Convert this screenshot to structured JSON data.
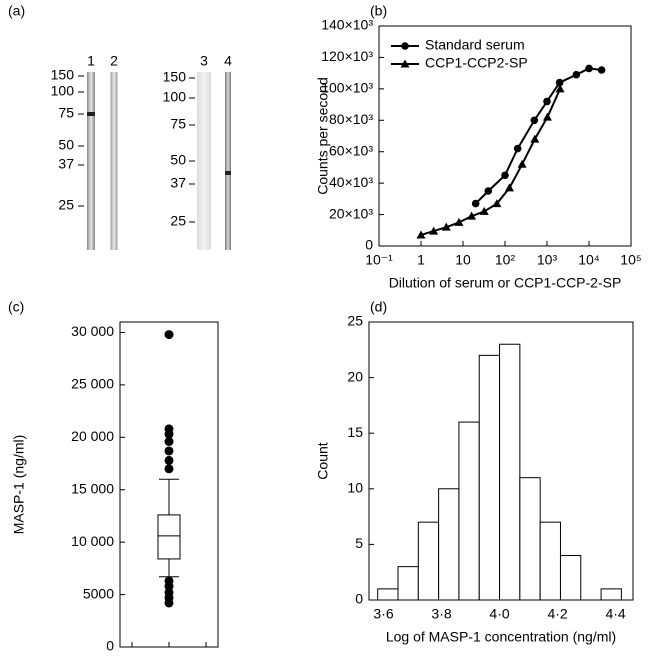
{
  "chart_data": [
    {
      "type": "blot",
      "panel_label": "(a)",
      "lanes": [
        "1",
        "2",
        "3",
        "4"
      ],
      "left_markers": [
        150,
        100,
        75,
        50,
        37,
        25
      ],
      "right_markers": [
        150,
        100,
        75,
        50,
        37,
        25
      ]
    },
    {
      "type": "line",
      "panel_label": "(b)",
      "x_label": "Dilution of serum or CCP1-CCP-2-SP",
      "y_label": "Counts per second",
      "xlog": true,
      "xlim": [
        0.1,
        100000
      ],
      "xticks": [
        {
          "value": 0.1,
          "label": "10⁻¹"
        },
        1,
        10,
        {
          "value": 100,
          "label": "10²"
        },
        {
          "value": 1000,
          "label": "10³"
        },
        {
          "value": 10000,
          "label": "10⁴"
        },
        {
          "value": 100000,
          "label": "10⁵"
        }
      ],
      "ylim": [
        0,
        140000
      ],
      "yticks": [
        0,
        {
          "value": 20000,
          "label": "20×10³"
        },
        {
          "value": 40000,
          "label": "40×10³"
        },
        {
          "value": 60000,
          "label": "60×10³"
        },
        {
          "value": 80000,
          "label": "80×10³"
        },
        {
          "value": 100000,
          "label": "100×10³"
        },
        {
          "value": 120000,
          "label": "120×10³"
        },
        {
          "value": 140000,
          "label": "140×10³"
        }
      ],
      "legend": "upper left",
      "series": [
        {
          "name": "Standard serum",
          "marker": "circle",
          "color": "#000000",
          "x": [
            20,
            40,
            100,
            200,
            500,
            1000,
            2000,
            5000,
            10000,
            20000
          ],
          "values": [
            27000,
            35000,
            45000,
            62000,
            80000,
            92000,
            104000,
            109000,
            113000,
            112000
          ]
        },
        {
          "name": "CCP1-CCP2-SP",
          "marker": "triangle",
          "color": "#000000",
          "x": [
            1,
            2,
            4,
            8,
            16,
            32,
            64,
            128,
            256,
            512,
            1024,
            2048
          ],
          "values": [
            7000,
            9500,
            12000,
            15000,
            19000,
            22000,
            27000,
            37000,
            52000,
            68000,
            82000,
            100000
          ]
        }
      ]
    },
    {
      "type": "box",
      "panel_label": "(c)",
      "y_label": "MASP-1 (ng/ml)",
      "color": "#000000",
      "ylim": [
        0,
        31000
      ],
      "yticks": [
        0,
        5000,
        {
          "value": 10000,
          "label": "10 000"
        },
        {
          "value": 15000,
          "label": "15 000"
        },
        {
          "value": 20000,
          "label": "20 000"
        },
        {
          "value": 25000,
          "label": "25 000"
        },
        {
          "value": 30000,
          "label": "30 000"
        }
      ],
      "stats": {
        "min": 6700,
        "q1": 8400,
        "median": 10600,
        "q3": 12600,
        "max": 16000
      },
      "outliers": [
        17000,
        17800,
        18700,
        19600,
        20300,
        20800,
        29800,
        6300,
        5800,
        5200,
        4700,
        4200
      ]
    },
    {
      "type": "histogram",
      "panel_label": "(d)",
      "x_label": "Log of MASP-1 concentration (ng/ml)",
      "y_label": "Count",
      "bins": [
        3.58,
        3.65,
        3.72,
        3.79,
        3.86,
        3.93,
        4.0,
        4.07,
        4.14,
        4.21,
        4.28,
        4.35,
        4.42
      ],
      "counts": [
        1,
        3,
        7,
        10,
        16,
        22,
        23,
        11,
        7,
        4,
        0,
        1
      ],
      "xlim": [
        3.55,
        4.46
      ],
      "xticks": [
        {
          "value": 3.6,
          "label": "3·6"
        },
        {
          "value": 3.8,
          "label": "3·8"
        },
        {
          "value": 4.0,
          "label": "4·0"
        },
        {
          "value": 4.2,
          "label": "4·2"
        },
        {
          "value": 4.4,
          "label": "4·4"
        }
      ],
      "ylim": [
        0,
        25
      ],
      "yticks": [
        0,
        5,
        10,
        15,
        20,
        25
      ]
    }
  ]
}
